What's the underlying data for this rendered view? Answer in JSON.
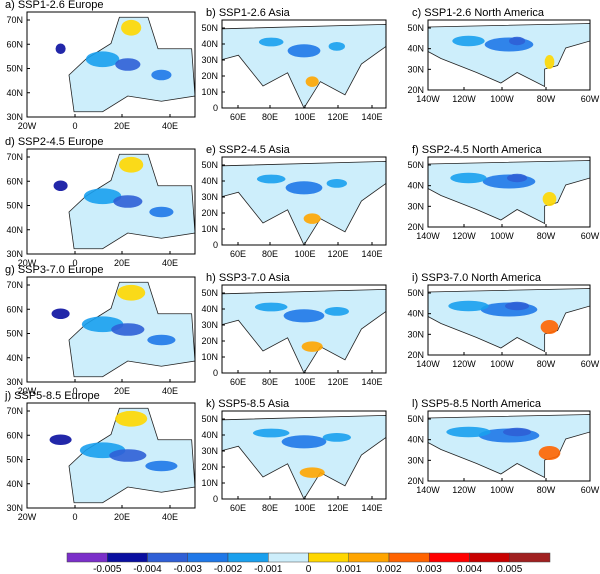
{
  "panels": [
    {
      "title": "a) SSP1-2.6 Europe",
      "region": "europe",
      "row": 0
    },
    {
      "title": "b) SSP1-2.6 Asia",
      "region": "asia",
      "row": 0
    },
    {
      "title": "c) SSP1-2.6 North America",
      "region": "na",
      "row": 0
    },
    {
      "title": "d) SSP2-4.5 Europe",
      "region": "europe",
      "row": 1
    },
    {
      "title": "e) SSP2-4.5 Asia",
      "region": "asia",
      "row": 1
    },
    {
      "title": "f) SSP2-4.5 North America",
      "region": "na",
      "row": 1
    },
    {
      "title": "g) SSP3-7.0 Europe",
      "region": "europe",
      "row": 2
    },
    {
      "title": "h) SSP3-7.0 Asia",
      "region": "asia",
      "row": 2
    },
    {
      "title": "i) SSP3-7.0 North America",
      "region": "na",
      "row": 2
    },
    {
      "title": "j) SSP5-8.5 Europe",
      "region": "europe",
      "row": 3
    },
    {
      "title": "k) SSP5-8.5 Asia",
      "region": "asia",
      "row": 3
    },
    {
      "title": "l) SSP5-8.5 North America",
      "region": "na",
      "row": 3
    }
  ],
  "axes": {
    "europe": {
      "yticks": [
        "70N",
        "60N",
        "50N",
        "40N",
        "30N"
      ],
      "xticks": [
        "20W",
        "0",
        "20E",
        "40E"
      ]
    },
    "asia": {
      "yticks": [
        "50N",
        "40N",
        "30N",
        "20N",
        "10N",
        "0"
      ],
      "xticks": [
        "60E",
        "80E",
        "100E",
        "120E",
        "140E"
      ]
    },
    "na": {
      "yticks": [
        "50N",
        "40N",
        "30N",
        "20N"
      ],
      "xticks": [
        "140W",
        "120W",
        "100W",
        "80W",
        "60W"
      ]
    }
  },
  "colorbar": {
    "colors": [
      "#7b2fc9",
      "#0a0fa0",
      "#2f5fd6",
      "#1f78e8",
      "#1aa0ee",
      "#cdeefb",
      "#ffd700",
      "#ffa500",
      "#ff6400",
      "#ff0000",
      "#c80000",
      "#a02020"
    ],
    "labels": [
      "-0.005",
      "-0.004",
      "-0.003",
      "-0.002",
      "-0.001",
      "0",
      "0.001",
      "0.002",
      "0.003",
      "0.004",
      "0.005"
    ]
  }
}
